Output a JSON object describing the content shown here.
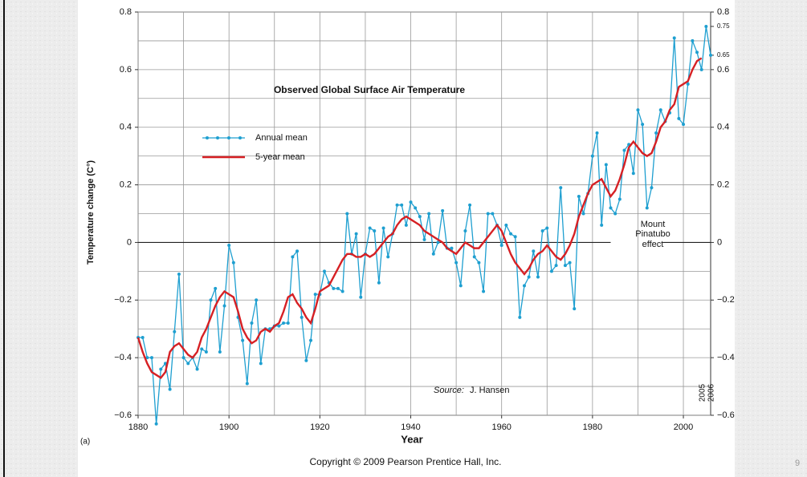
{
  "chart_data": {
    "type": "line",
    "title": "Observed Global Surface Air Temperature",
    "xlabel": "Year",
    "ylabel": "Temperature change (C°)",
    "panel": "(a)",
    "source_label": "Source:",
    "source": "J. Hansen",
    "annotation": [
      "Mount",
      "Pinatubo",
      "effect"
    ],
    "end_labels": [
      "2005",
      "2006"
    ],
    "copyright": "Copyright © 2009 Pearson Prentice Hall, Inc.",
    "page_number": "9",
    "xlim": [
      1880,
      2006
    ],
    "ylim": [
      -0.6,
      0.8
    ],
    "y2lim": [
      -0.6,
      0.8
    ],
    "xticks": [
      1880,
      1900,
      1920,
      1940,
      1960,
      1980,
      2000
    ],
    "xgrid": [
      1880,
      1890,
      1900,
      1910,
      1920,
      1930,
      1940,
      1950,
      1960,
      1970,
      1980,
      1990,
      2000
    ],
    "ygrid": [
      -0.6,
      -0.5,
      -0.4,
      -0.3,
      -0.2,
      -0.1,
      0.1,
      0.2,
      0.3,
      0.4,
      0.5,
      0.6,
      0.7,
      0.8
    ],
    "yticks": [
      0.8,
      0.6,
      0.4,
      0.2,
      0,
      {
        "value": -0.2,
        "label": "−0.2"
      },
      {
        "value": -0.4,
        "label": "−0.4"
      },
      {
        "value": -0.6,
        "label": "−0.6"
      }
    ],
    "y2ticks": [
      0.8,
      0.75,
      0.65,
      0.6,
      0.4,
      0.2,
      0,
      {
        "value": -0.2,
        "label": "−0.2"
      },
      {
        "value": -0.4,
        "label": "−0.4"
      },
      {
        "value": -0.6,
        "label": "−0.6"
      }
    ],
    "x": [
      1880,
      1881,
      1882,
      1883,
      1884,
      1885,
      1886,
      1887,
      1888,
      1889,
      1890,
      1891,
      1892,
      1893,
      1894,
      1895,
      1896,
      1897,
      1898,
      1899,
      1900,
      1901,
      1902,
      1903,
      1904,
      1905,
      1906,
      1907,
      1908,
      1909,
      1910,
      1911,
      1912,
      1913,
      1914,
      1915,
      1916,
      1917,
      1918,
      1919,
      1920,
      1921,
      1922,
      1923,
      1924,
      1925,
      1926,
      1927,
      1928,
      1929,
      1930,
      1931,
      1932,
      1933,
      1934,
      1935,
      1936,
      1937,
      1938,
      1939,
      1940,
      1941,
      1942,
      1943,
      1944,
      1945,
      1946,
      1947,
      1948,
      1949,
      1950,
      1951,
      1952,
      1953,
      1954,
      1955,
      1956,
      1957,
      1958,
      1959,
      1960,
      1961,
      1962,
      1963,
      1964,
      1965,
      1966,
      1967,
      1968,
      1969,
      1970,
      1971,
      1972,
      1973,
      1974,
      1975,
      1976,
      1977,
      1978,
      1979,
      1980,
      1981,
      1982,
      1983,
      1984,
      1985,
      1986,
      1987,
      1988,
      1989,
      1990,
      1991,
      1992,
      1993,
      1994,
      1995,
      1996,
      1997,
      1998,
      1999,
      2000,
      2001,
      2002,
      2003,
      2004,
      2005,
      2006
    ],
    "series": [
      {
        "name": "Annual mean",
        "color": "#1e9fd0",
        "markers": true,
        "values": [
          -0.33,
          -0.33,
          -0.4,
          -0.4,
          -0.63,
          -0.44,
          -0.42,
          -0.51,
          -0.31,
          -0.11,
          -0.4,
          -0.42,
          -0.4,
          -0.44,
          -0.37,
          -0.38,
          -0.2,
          -0.16,
          -0.38,
          -0.22,
          -0.01,
          -0.07,
          -0.26,
          -0.34,
          -0.49,
          -0.28,
          -0.2,
          -0.42,
          -0.3,
          -0.3,
          -0.29,
          -0.29,
          -0.28,
          -0.28,
          -0.05,
          -0.03,
          -0.26,
          -0.41,
          -0.34,
          -0.18,
          -0.18,
          -0.1,
          -0.14,
          -0.16,
          -0.16,
          -0.17,
          0.1,
          -0.04,
          0.03,
          -0.19,
          -0.04,
          0.05,
          0.04,
          -0.14,
          0.05,
          -0.05,
          0.03,
          0.13,
          0.13,
          0.06,
          0.14,
          0.12,
          0.09,
          0.01,
          0.1,
          -0.04,
          0.0,
          0.11,
          -0.02,
          -0.02,
          -0.07,
          -0.15,
          0.04,
          0.13,
          -0.05,
          -0.07,
          -0.17,
          0.1,
          0.1,
          0.06,
          -0.01,
          0.06,
          0.03,
          0.02,
          -0.26,
          -0.15,
          -0.12,
          -0.03,
          -0.12,
          0.04,
          0.05,
          -0.1,
          -0.08,
          0.19,
          -0.08,
          -0.07,
          -0.23,
          0.16,
          0.1,
          0.17,
          0.3,
          0.38,
          0.06,
          0.27,
          0.12,
          0.1,
          0.15,
          0.32,
          0.34,
          0.24,
          0.46,
          0.41,
          0.12,
          0.19,
          0.38,
          0.46,
          0.42,
          0.45,
          0.71,
          0.43,
          0.41,
          0.55,
          0.7,
          0.66,
          0.6,
          0.75,
          0.65
        ]
      },
      {
        "name": "5-year mean",
        "color": "#d62024",
        "markers": false,
        "values": [
          -0.33,
          -0.38,
          -0.42,
          -0.45,
          -0.46,
          -0.47,
          -0.45,
          -0.38,
          -0.36,
          -0.35,
          -0.37,
          -0.39,
          -0.4,
          -0.38,
          -0.33,
          -0.3,
          -0.26,
          -0.22,
          -0.19,
          -0.17,
          -0.18,
          -0.19,
          -0.24,
          -0.3,
          -0.33,
          -0.35,
          -0.34,
          -0.31,
          -0.3,
          -0.31,
          -0.29,
          -0.28,
          -0.24,
          -0.19,
          -0.18,
          -0.21,
          -0.23,
          -0.26,
          -0.28,
          -0.23,
          -0.17,
          -0.16,
          -0.15,
          -0.12,
          -0.09,
          -0.06,
          -0.04,
          -0.04,
          -0.05,
          -0.05,
          -0.04,
          -0.05,
          -0.04,
          -0.02,
          0.0,
          0.02,
          0.03,
          0.06,
          0.08,
          0.09,
          0.08,
          0.07,
          0.06,
          0.04,
          0.03,
          0.02,
          0.01,
          0.0,
          -0.02,
          -0.03,
          -0.04,
          -0.02,
          0.0,
          -0.01,
          -0.02,
          -0.02,
          0.0,
          0.02,
          0.04,
          0.06,
          0.04,
          0.0,
          -0.04,
          -0.07,
          -0.09,
          -0.11,
          -0.09,
          -0.06,
          -0.04,
          -0.03,
          -0.01,
          -0.03,
          -0.05,
          -0.06,
          -0.04,
          -0.01,
          0.03,
          0.09,
          0.13,
          0.17,
          0.2,
          0.21,
          0.22,
          0.19,
          0.16,
          0.18,
          0.22,
          0.27,
          0.33,
          0.35,
          0.33,
          0.31,
          0.3,
          0.31,
          0.35,
          0.4,
          0.42,
          0.46,
          0.48,
          0.54,
          0.55,
          0.56,
          0.6,
          0.63,
          0.64,
          null,
          null
        ]
      }
    ]
  }
}
